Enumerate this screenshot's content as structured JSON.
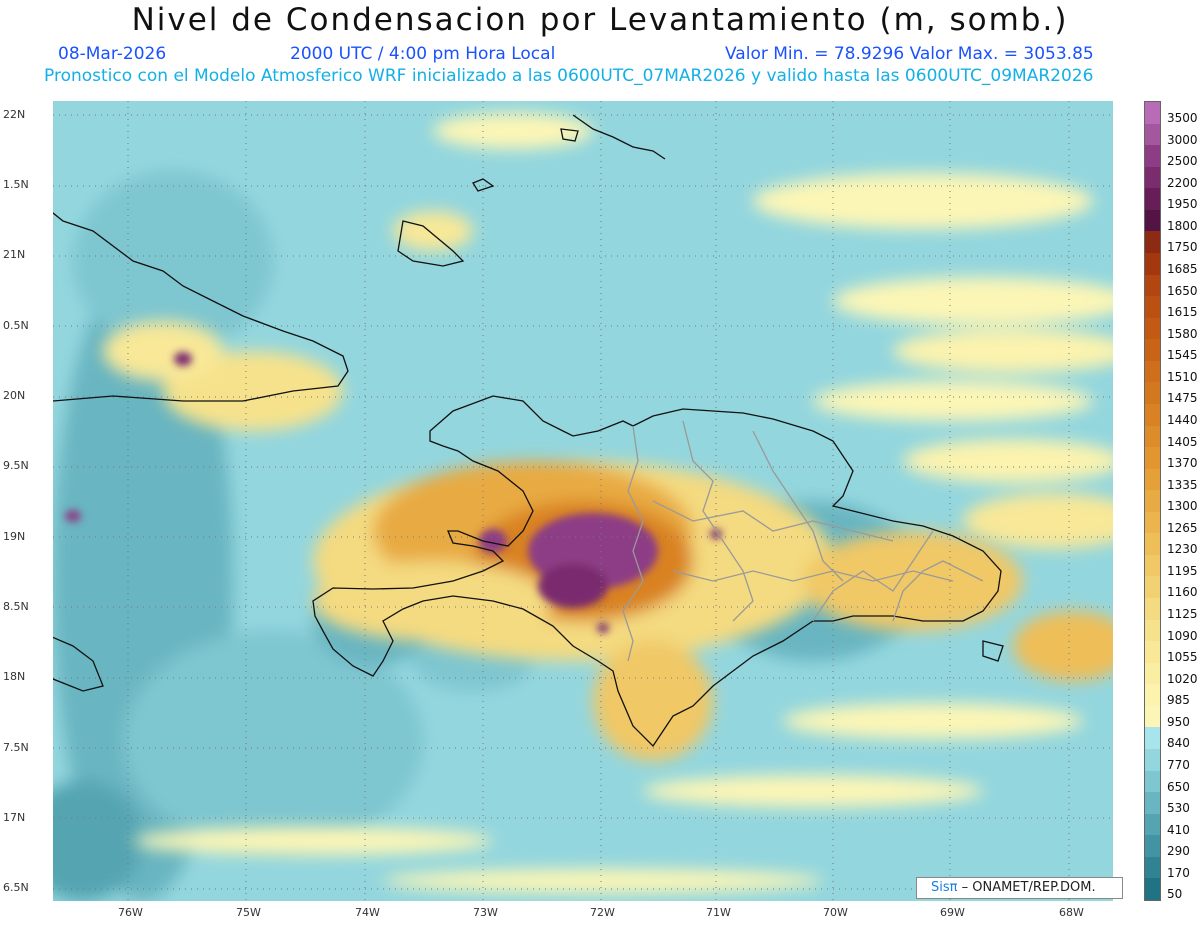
{
  "title": "Nivel de Condensacion por Levantamiento (m, somb.)",
  "subtitle": {
    "date": "08-Mar-2026",
    "time": "2000 UTC / 4:00 pm Hora Local",
    "range": "Valor Min. = 78.9296  Valor Max. = 3053.85"
  },
  "subtitle2": "Pronostico con el Modelo Atmosferico WRF inicializado a las 0600UTC_07MAR2026 y valido hasta las  0600UTC_09MAR2026",
  "axes": {
    "lat_labels": [
      "22N",
      "1.5N",
      "21N",
      "0.5N",
      "20N",
      "9.5N",
      "19N",
      "8.5N",
      "18N",
      "7.5N",
      "17N",
      "6.5N"
    ],
    "lon_labels": [
      "76W",
      "75W",
      "74W",
      "73W",
      "72W",
      "71W",
      "70W",
      "69W",
      "68W"
    ]
  },
  "colorbar": {
    "levels": [
      "3500",
      "3000",
      "2500",
      "2200",
      "1950",
      "1800",
      "1750",
      "1685",
      "1650",
      "1615",
      "1580",
      "1545",
      "1510",
      "1475",
      "1440",
      "1405",
      "1370",
      "1335",
      "1300",
      "1265",
      "1230",
      "1195",
      "1160",
      "1125",
      "1090",
      "1055",
      "1020",
      "985",
      "950",
      "840",
      "770",
      "650",
      "530",
      "410",
      "290",
      "170",
      "50"
    ],
    "colors": [
      "#b86bb6",
      "#a4569f",
      "#8c3d85",
      "#7a2c6e",
      "#671d57",
      "#531445",
      "#8c2a14",
      "#a3380f",
      "#b24610",
      "#bb5012",
      "#c35a14",
      "#c96417",
      "#cf6e1b",
      "#d4781f",
      "#d98224",
      "#dd8c2a",
      "#e19630",
      "#e5a038",
      "#e8aa42",
      "#ebb44d",
      "#eebe59",
      "#f0c866",
      "#f2d173",
      "#f4da80",
      "#f6e28c",
      "#f8e898",
      "#faeea3",
      "#fbf3ae",
      "#fcf6b6",
      "#a8e4ec",
      "#93d6de",
      "#7ec6d0",
      "#69b5c1",
      "#55a4b2",
      "#4293a3",
      "#308393",
      "#207384"
    ]
  },
  "credit": {
    "brand": "Sisπ",
    "text": " – ONAMET/REP.DOM."
  }
}
